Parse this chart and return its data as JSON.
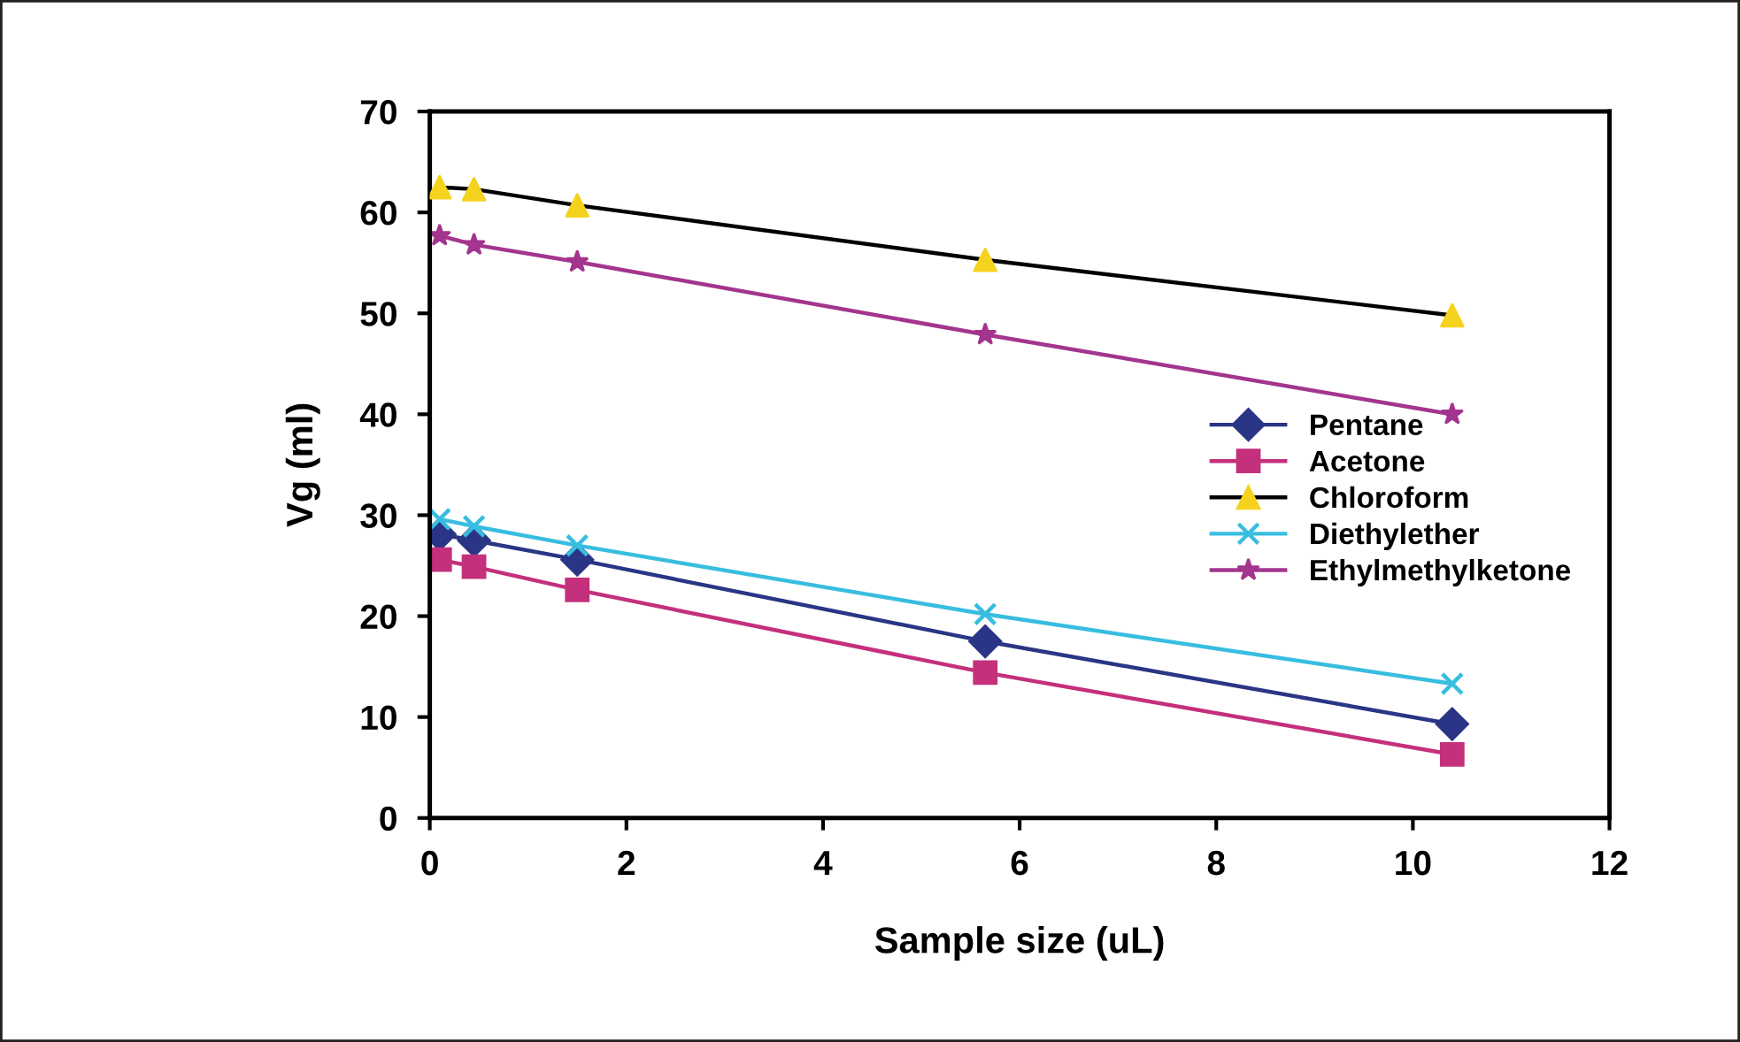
{
  "chart_data": {
    "type": "line",
    "xlabel": "Sample size (uL)",
    "ylabel": "Vg (ml)",
    "xlim": [
      0,
      12
    ],
    "xticks": [
      0,
      2,
      4,
      6,
      8,
      10,
      12
    ],
    "ylim": [
      0,
      70
    ],
    "yticks": [
      0,
      10,
      20,
      30,
      40,
      50,
      60,
      70
    ],
    "x": [
      0.1,
      0.45,
      1.5,
      5.65,
      10.4
    ],
    "series": [
      {
        "name": "Pentane",
        "color": "#2b3585",
        "marker": "diamond",
        "values": [
          28.1,
          27.5,
          25.6,
          17.5,
          9.3
        ]
      },
      {
        "name": "Acetone",
        "color": "#c4307c",
        "marker": "square",
        "values": [
          25.6,
          24.9,
          22.6,
          14.4,
          6.3
        ]
      },
      {
        "name": "Chloroform",
        "color": "#000000",
        "colors": [
          "#f5d21e",
          "#f5d21e",
          "#f5d21e",
          "#f5d21e",
          "#f5d21e"
        ],
        "marker": "triangle",
        "values": [
          62.5,
          62.3,
          60.7,
          55.3,
          49.8
        ]
      },
      {
        "name": "Diethylether",
        "color": "#38bde0",
        "marker": "cross",
        "values": [
          29.6,
          28.9,
          27.0,
          20.2,
          13.3
        ]
      },
      {
        "name": "Ethylmethylketone",
        "color": "#a3358e",
        "marker": "star",
        "values": [
          57.7,
          56.8,
          55.1,
          47.9,
          40.0
        ]
      }
    ],
    "grid": false,
    "legend": "right",
    "line_style": "solid"
  }
}
